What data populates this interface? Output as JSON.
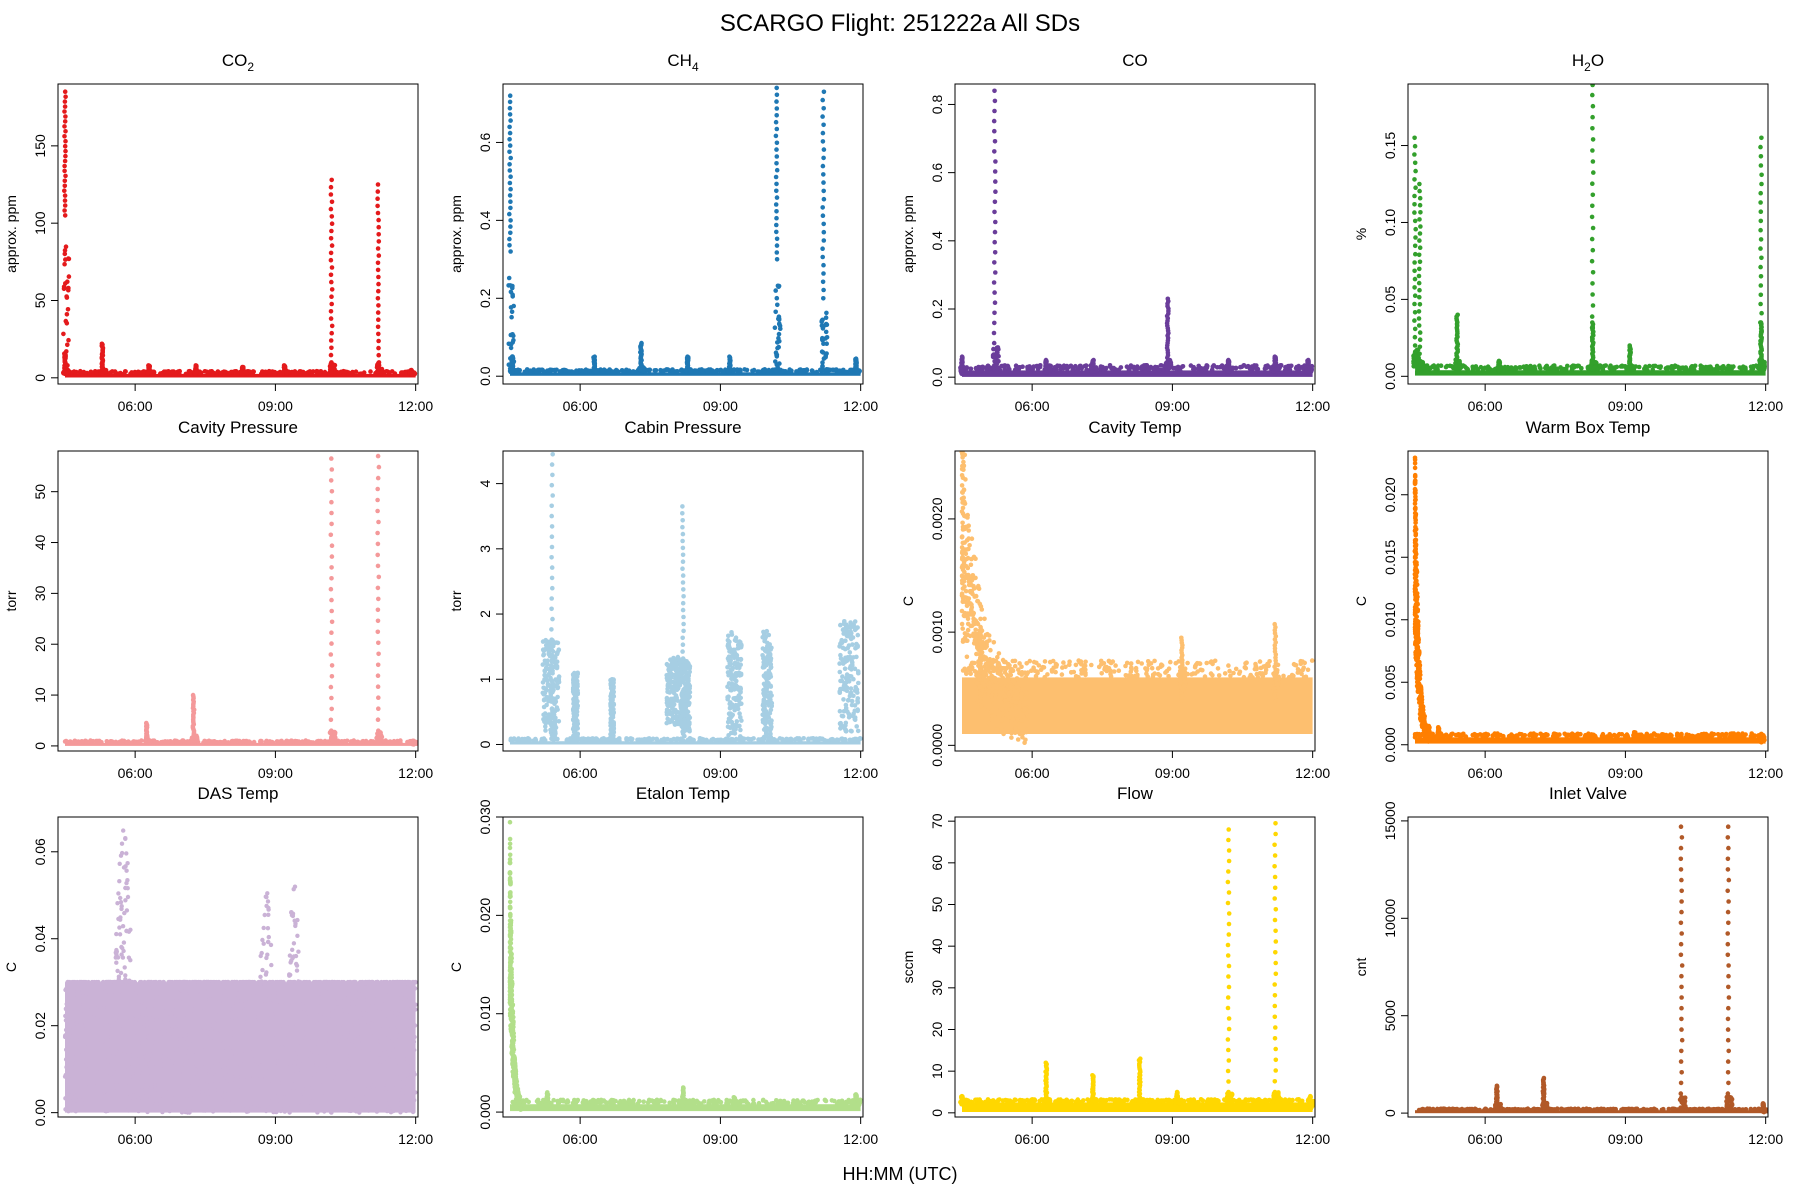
{
  "figure": {
    "title": "SCARGO Flight: 251222a  All SDs",
    "xlabel": "HH:MM (UTC)"
  },
  "chart_data": [
    {
      "type": "scatter",
      "title_main": "CO",
      "title_sub": "2",
      "title_tail": "",
      "ylabel": "approx. ppm",
      "color": "#e41a1c",
      "xlim": [
        4.35,
        12.05
      ],
      "ylim": [
        -4,
        190
      ],
      "yticks": [
        0,
        50,
        100,
        150
      ],
      "ytick_labels": [
        "0",
        "50",
        "100",
        "150"
      ],
      "xticks": [
        6,
        9,
        12
      ],
      "xtick_labels": [
        "06:00",
        "09:00",
        "12:00"
      ],
      "baseline": [
        0.2,
        2.5
      ],
      "noise": 1.2,
      "events": [
        [
          4.5,
          105,
          185
        ],
        [
          4.5,
          3,
          15
        ],
        [
          5.3,
          5,
          22
        ],
        [
          6.3,
          3,
          8
        ],
        [
          7.3,
          3,
          8
        ],
        [
          8.3,
          3,
          7
        ],
        [
          9.2,
          3,
          8
        ],
        [
          10.2,
          10,
          128
        ],
        [
          11.2,
          10,
          125
        ],
        [
          11.9,
          2,
          5
        ]
      ]
    },
    {
      "type": "scatter",
      "title_main": "CH",
      "title_sub": "4",
      "title_tail": "",
      "ylabel": "approx. ppm",
      "color": "#1f78b4",
      "xlim": [
        4.35,
        12.05
      ],
      "ylim": [
        -0.02,
        0.75
      ],
      "yticks": [
        0,
        0.2,
        0.4,
        0.6
      ],
      "ytick_labels": [
        "0.0",
        "0.2",
        "0.4",
        "0.6"
      ],
      "xticks": [
        6,
        9,
        12
      ],
      "xtick_labels": [
        "06:00",
        "09:00",
        "12:00"
      ],
      "baseline": [
        0.001,
        0.01
      ],
      "noise": 0.005,
      "events": [
        [
          4.5,
          0.32,
          0.72
        ],
        [
          4.55,
          0.01,
          0.05
        ],
        [
          6.3,
          0.01,
          0.05
        ],
        [
          7.3,
          0.02,
          0.085
        ],
        [
          8.3,
          0.01,
          0.05
        ],
        [
          9.2,
          0.01,
          0.05
        ],
        [
          10.2,
          0.3,
          0.74
        ],
        [
          11.2,
          0.2,
          0.73
        ],
        [
          11.9,
          0.01,
          0.045
        ]
      ]
    },
    {
      "type": "scatter",
      "title_main": "CO",
      "title_sub": "",
      "title_tail": "",
      "ylabel": "approx. ppm",
      "color": "#6a3d9a",
      "xlim": [
        4.35,
        12.05
      ],
      "ylim": [
        -0.02,
        0.86
      ],
      "yticks": [
        0,
        0.2,
        0.4,
        0.6,
        0.8
      ],
      "ytick_labels": [
        "0.0",
        "0.2",
        "0.4",
        "0.6",
        "0.8"
      ],
      "xticks": [
        6,
        9,
        12
      ],
      "xtick_labels": [
        "06:00",
        "09:00",
        "12:00"
      ],
      "baseline": [
        0.001,
        0.02
      ],
      "noise": 0.01,
      "events": [
        [
          4.5,
          0.01,
          0.06
        ],
        [
          5.2,
          0.1,
          0.84
        ],
        [
          6.3,
          0.01,
          0.05
        ],
        [
          7.3,
          0.01,
          0.05
        ],
        [
          8.9,
          0.05,
          0.23
        ],
        [
          10.2,
          0.01,
          0.05
        ],
        [
          11.2,
          0.01,
          0.06
        ],
        [
          11.9,
          0.01,
          0.05
        ]
      ]
    },
    {
      "type": "scatter",
      "title_main": "H",
      "title_sub": "2",
      "title_tail": "O",
      "ylabel": "%",
      "color": "#33a02c",
      "xlim": [
        4.35,
        12.05
      ],
      "ylim": [
        -0.005,
        0.19
      ],
      "yticks": [
        0,
        0.05,
        0.1,
        0.15
      ],
      "ytick_labels": [
        "0.00",
        "0.05",
        "0.10",
        "0.15"
      ],
      "xticks": [
        6,
        9,
        12
      ],
      "xtick_labels": [
        "06:00",
        "09:00",
        "12:00"
      ],
      "baseline": [
        0.0005,
        0.004
      ],
      "noise": 0.002,
      "events": [
        [
          4.5,
          0.02,
          0.155
        ],
        [
          4.6,
          0.01,
          0.125
        ],
        [
          5.4,
          0.01,
          0.04
        ],
        [
          6.3,
          0.003,
          0.01
        ],
        [
          8.3,
          0.01,
          0.19
        ],
        [
          8.3,
          0.005,
          0.035
        ],
        [
          9.1,
          0.005,
          0.02
        ],
        [
          11.9,
          0.005,
          0.155
        ],
        [
          11.9,
          0.01,
          0.035
        ]
      ]
    },
    {
      "type": "scatter",
      "title_main": "Cavity Pressure",
      "title_sub": "",
      "title_tail": "",
      "ylabel": "torr",
      "color": "#f4999a",
      "xlim": [
        4.35,
        12.05
      ],
      "ylim": [
        -1,
        58
      ],
      "yticks": [
        0,
        10,
        20,
        30,
        40,
        50
      ],
      "ytick_labels": [
        "0",
        "10",
        "20",
        "30",
        "40",
        "50"
      ],
      "xticks": [
        6,
        9,
        12
      ],
      "xtick_labels": [
        "06:00",
        "09:00",
        "12:00"
      ],
      "baseline": [
        0.05,
        0.6
      ],
      "noise": 0.3,
      "events": [
        [
          6.25,
          1,
          4.5
        ],
        [
          7.25,
          2,
          10
        ],
        [
          10.2,
          3,
          56.5
        ],
        [
          11.2,
          3,
          57
        ],
        [
          11.95,
          0.3,
          1
        ]
      ]
    },
    {
      "type": "scatter",
      "title_main": "Cabin Pressure",
      "title_sub": "",
      "title_tail": "",
      "ylabel": "torr",
      "color": "#a6cee3",
      "xlim": [
        4.35,
        12.05
      ],
      "ylim": [
        -0.1,
        4.5
      ],
      "yticks": [
        0,
        1,
        2,
        3,
        4
      ],
      "ytick_labels": [
        "0",
        "1",
        "2",
        "3",
        "4"
      ],
      "xticks": [
        6,
        9,
        12
      ],
      "xtick_labels": [
        "06:00",
        "09:00",
        "12:00"
      ],
      "baseline": [
        0.0,
        0.05
      ],
      "noise": 0.03,
      "blocks": [
        [
          5.2,
          5.55,
          0.2,
          1.6
        ],
        [
          5.85,
          5.95,
          0.1,
          1.1
        ],
        [
          6.65,
          6.72,
          0.05,
          1.0
        ],
        [
          7.85,
          8.15,
          0.3,
          1.35
        ],
        [
          8.15,
          8.35,
          0.2,
          1.3
        ],
        [
          9.15,
          9.45,
          0.1,
          1.75
        ],
        [
          9.9,
          10.1,
          0.1,
          1.75
        ],
        [
          11.55,
          11.95,
          0.2,
          1.9
        ]
      ],
      "events": [
        [
          5.4,
          0.5,
          4.45
        ],
        [
          8.2,
          1.0,
          3.65
        ]
      ]
    },
    {
      "type": "scatter",
      "title_main": "Cavity Temp",
      "title_sub": "",
      "title_tail": "",
      "ylabel": "C",
      "color": "#fdbf6f",
      "xlim": [
        4.35,
        12.05
      ],
      "ylim": [
        -5e-05,
        0.0026
      ],
      "yticks": [
        0,
        0.001,
        0.002
      ],
      "ytick_labels": [
        "0.0000",
        "0.0010",
        "0.0020"
      ],
      "xticks": [
        6,
        9,
        12
      ],
      "xtick_labels": [
        "06:00",
        "09:00",
        "12:00"
      ],
      "baseline": [
        0.0001,
        0.0006
      ],
      "noise": 0.0001,
      "decay": [
        4.5,
        0.0026,
        0.35
      ],
      "events": [
        [
          4.9,
          0.0004,
          0.00102
        ],
        [
          9.2,
          0.0004,
          0.00095
        ],
        [
          11.2,
          0.0004,
          0.00107
        ]
      ]
    },
    {
      "type": "scatter",
      "title_main": "Warm Box Temp",
      "title_sub": "",
      "title_tail": "",
      "ylabel": "C",
      "color": "#ff7f00",
      "xlim": [
        4.35,
        12.05
      ],
      "ylim": [
        -0.0005,
        0.0235
      ],
      "yticks": [
        0,
        0.005,
        0.01,
        0.015,
        0.02
      ],
      "ytick_labels": [
        "0.000",
        "0.005",
        "0.010",
        "0.015",
        "0.020"
      ],
      "xticks": [
        6,
        9,
        12
      ],
      "xtick_labels": [
        "06:00",
        "09:00",
        "12:00"
      ],
      "baseline": [
        0.0001,
        0.0006
      ],
      "noise": 0.0002,
      "decay": [
        4.5,
        0.023,
        0.08
      ],
      "events": [
        [
          4.8,
          0.0005,
          0.0015
        ],
        [
          5.0,
          0.0005,
          0.0014
        ],
        [
          8.3,
          0.0003,
          0.0008
        ],
        [
          9.2,
          0.0003,
          0.001
        ],
        [
          11.9,
          0.0002,
          0.0008
        ]
      ]
    },
    {
      "type": "scatter",
      "title_main": "DAS Temp",
      "title_sub": "",
      "title_tail": "",
      "ylabel": "C",
      "color": "#cab2d6",
      "xlim": [
        4.35,
        12.05
      ],
      "ylim": [
        -0.001,
        0.068
      ],
      "yticks": [
        0,
        0.02,
        0.04,
        0.06
      ],
      "ytick_labels": [
        "0.00",
        "0.02",
        "0.04",
        "0.06"
      ],
      "xticks": [
        6,
        9,
        12
      ],
      "xtick_labels": [
        "06:00",
        "09:00",
        "12:00"
      ],
      "baseline": [
        0.0,
        0.03
      ],
      "noise": 0.0,
      "humps": [
        [
          5.75,
          0.067,
          0.25
        ],
        [
          8.8,
          0.055,
          0.2
        ],
        [
          9.4,
          0.059,
          0.15
        ]
      ],
      "events": []
    },
    {
      "type": "scatter",
      "title_main": "Etalon Temp",
      "title_sub": "",
      "title_tail": "",
      "ylabel": "C",
      "color": "#b2df8a",
      "xlim": [
        4.35,
        12.05
      ],
      "ylim": [
        -0.0005,
        0.03
      ],
      "yticks": [
        0,
        0.01,
        0.02,
        0.03
      ],
      "ytick_labels": [
        "0.000",
        "0.010",
        "0.020",
        "0.030"
      ],
      "xticks": [
        6,
        9,
        12
      ],
      "xtick_labels": [
        "06:00",
        "09:00",
        "12:00"
      ],
      "baseline": [
        0.0001,
        0.0008
      ],
      "noise": 0.0003,
      "decay": [
        4.5,
        0.029,
        0.06
      ],
      "events": [
        [
          5.3,
          0.0005,
          0.002
        ],
        [
          8.2,
          0.0005,
          0.0025
        ],
        [
          9.3,
          0.0005,
          0.0015
        ],
        [
          11.9,
          0.0005,
          0.0018
        ]
      ]
    },
    {
      "type": "scatter",
      "title_main": "Flow",
      "title_sub": "",
      "title_tail": "",
      "ylabel": "sccm",
      "color": "#ffd700",
      "xlim": [
        4.35,
        12.05
      ],
      "ylim": [
        -1,
        71
      ],
      "yticks": [
        0,
        10,
        20,
        30,
        40,
        50,
        60,
        70
      ],
      "ytick_labels": [
        "0",
        "10",
        "20",
        "30",
        "40",
        "50",
        "60",
        "70"
      ],
      "xticks": [
        6,
        9,
        12
      ],
      "xtick_labels": [
        "06:00",
        "09:00",
        "12:00"
      ],
      "baseline": [
        0.2,
        2.5
      ],
      "noise": 0.5,
      "events": [
        [
          4.5,
          2,
          4
        ],
        [
          6.3,
          3,
          12
        ],
        [
          7.3,
          3,
          9
        ],
        [
          8.3,
          3,
          13
        ],
        [
          9.1,
          2,
          5
        ],
        [
          10.2,
          5,
          68
        ],
        [
          11.2,
          5,
          69.5
        ],
        [
          11.95,
          1,
          4
        ]
      ]
    },
    {
      "type": "scatter",
      "title_main": "Inlet Valve",
      "title_sub": "",
      "title_tail": "",
      "ylabel": "cnt",
      "color": "#b15928",
      "xlim": [
        4.35,
        12.05
      ],
      "ylim": [
        -200,
        15200
      ],
      "yticks": [
        0,
        5000,
        10000,
        15000
      ],
      "ytick_labels": [
        "0",
        "5000",
        "10000",
        "15000"
      ],
      "xticks": [
        6,
        9,
        12
      ],
      "xtick_labels": [
        "06:00",
        "09:00",
        "12:00"
      ],
      "baseline": [
        0,
        150
      ],
      "noise": 50,
      "events": [
        [
          6.25,
          500,
          1400
        ],
        [
          7.25,
          600,
          1800
        ],
        [
          10.2,
          1000,
          14700
        ],
        [
          11.2,
          1000,
          14700
        ],
        [
          11.95,
          50,
          500
        ]
      ]
    }
  ]
}
